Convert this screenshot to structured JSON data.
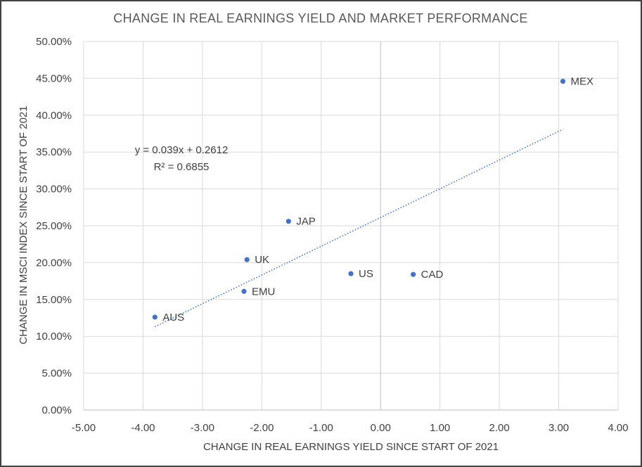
{
  "chart_data": {
    "type": "scatter",
    "title": "CHANGE IN REAL EARNINGS YIELD AND MARKET PERFORMANCE",
    "xlabel": "CHANGE IN REAL EARNINGS YIELD SINCE START OF 2021",
    "ylabel": "CHANGE IN MSCI INDEX SINCE START OF 2021",
    "xlim": [
      -5,
      4
    ],
    "ylim": [
      0,
      0.5
    ],
    "x_ticks": [
      -5,
      -4,
      -3,
      -2,
      -1,
      0,
      1,
      2,
      3,
      4
    ],
    "x_tick_labels": [
      "-5.00",
      "-4.00",
      "-3.00",
      "-2.00",
      "-1.00",
      "0.00",
      "1.00",
      "2.00",
      "3.00",
      "4.00"
    ],
    "y_ticks": [
      0,
      0.05,
      0.1,
      0.15,
      0.2,
      0.25,
      0.3,
      0.35,
      0.4,
      0.45,
      0.5
    ],
    "y_tick_labels": [
      "0.00%",
      "5.00%",
      "10.00%",
      "15.00%",
      "20.00%",
      "25.00%",
      "30.00%",
      "35.00%",
      "40.00%",
      "45.00%",
      "50.00%"
    ],
    "grid": true,
    "marker_color": "#4472c4",
    "points": [
      {
        "label": "AUS",
        "x": -3.8,
        "y": 0.126
      },
      {
        "label": "EMU",
        "x": -2.3,
        "y": 0.161
      },
      {
        "label": "UK",
        "x": -2.25,
        "y": 0.204
      },
      {
        "label": "JAP",
        "x": -1.55,
        "y": 0.256
      },
      {
        "label": "US",
        "x": -0.5,
        "y": 0.185
      },
      {
        "label": "CAD",
        "x": 0.55,
        "y": 0.184
      },
      {
        "label": "MEX",
        "x": 3.07,
        "y": 0.446
      }
    ],
    "trendline": {
      "type": "linear",
      "slope": 0.039,
      "intercept": 0.2612,
      "x_range": [
        -3.8,
        3.07
      ],
      "equation_text": "y = 0.039x + 0.2612",
      "r2_text": "R² = 0.6855"
    }
  }
}
